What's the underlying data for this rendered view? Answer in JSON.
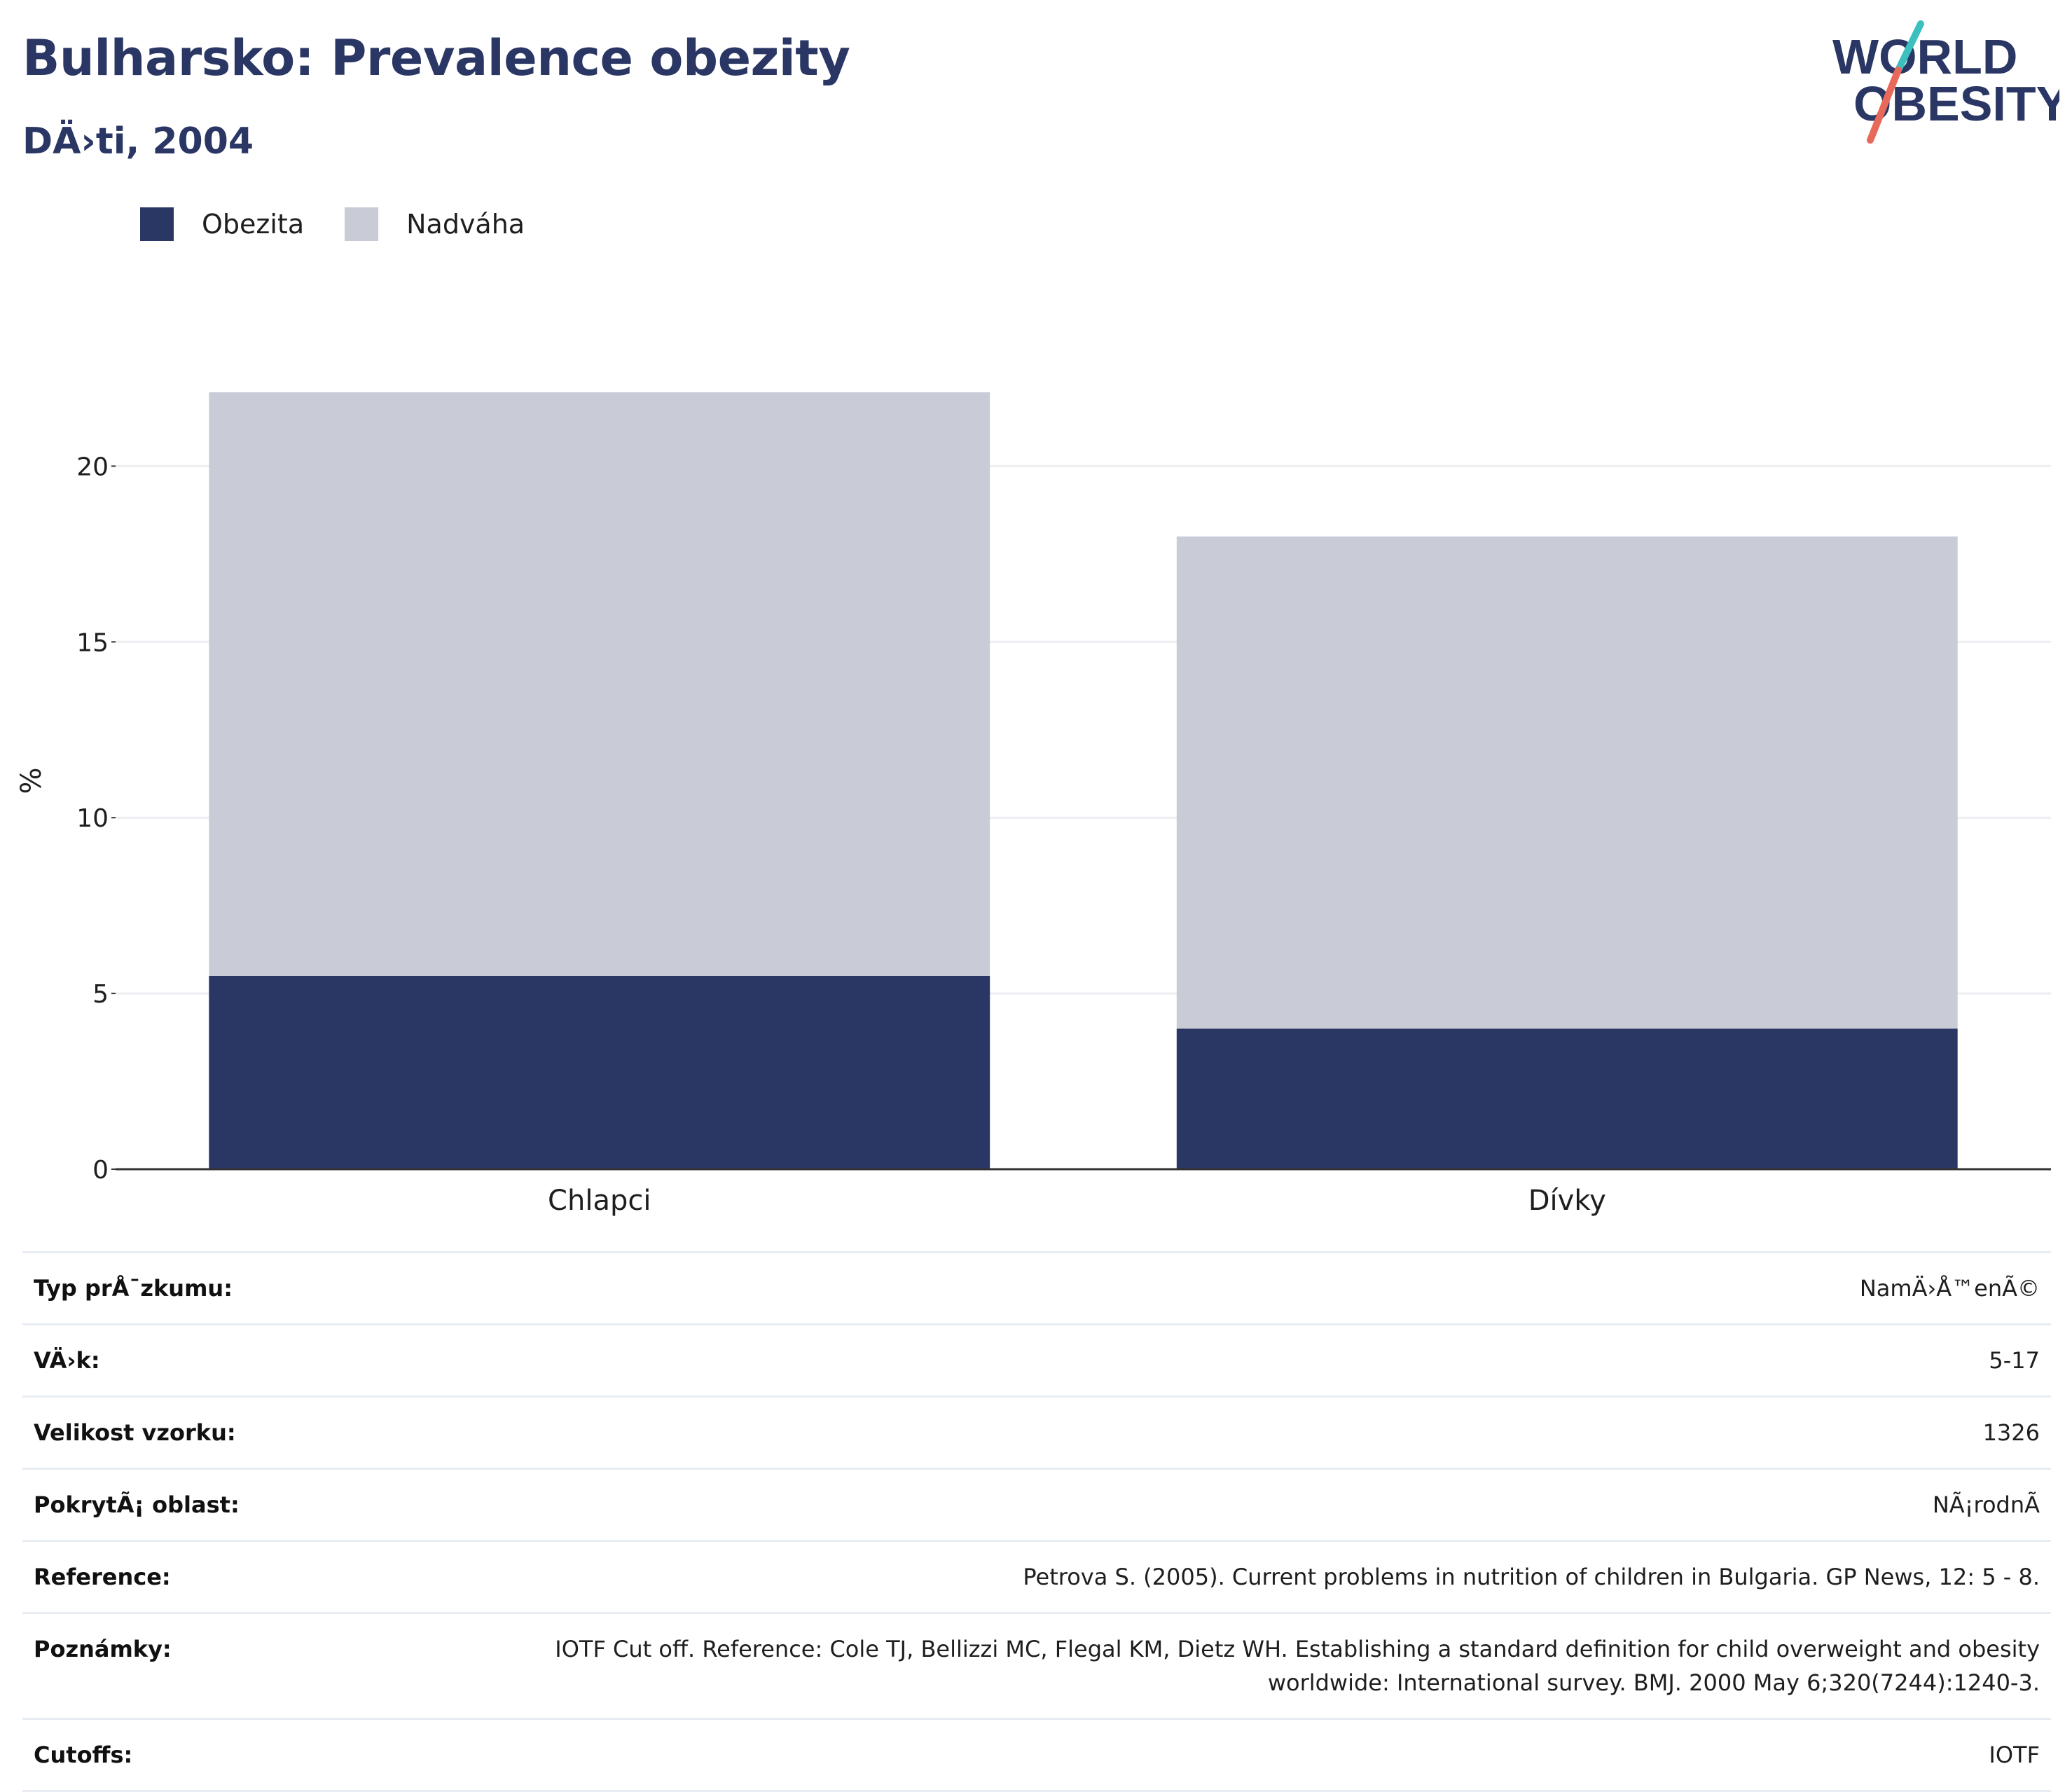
{
  "header": {
    "title": "Bulharsko: Prevalence obezity",
    "subtitle": "DÄ›ti, 2004"
  },
  "logo": {
    "line1": "WORLD",
    "line2": "OBESITY"
  },
  "colors": {
    "obezita": "#2a3664",
    "nadvaha": "#c9cbd7",
    "title": "#2a3664",
    "grid": "#eceef2",
    "axis": "#333333",
    "logo_teal": "#3bbfbf",
    "logo_coral": "#e8695a"
  },
  "legend": [
    {
      "label": "Obezita",
      "color": "#2a3664"
    },
    {
      "label": "Nadváha",
      "color": "#c9cbd7"
    }
  ],
  "chart_data": {
    "type": "bar",
    "stacked": true,
    "categories": [
      "Chlapci",
      "Dívky"
    ],
    "series": [
      {
        "name": "Obezita",
        "values": [
          5.5,
          4.0
        ],
        "color": "#2a3664"
      },
      {
        "name": "Nadváha",
        "values": [
          16.6,
          14.0
        ],
        "color": "#c9cbd7"
      }
    ],
    "ylabel": "%",
    "ylim": [
      0,
      22.1
    ],
    "yticks": [
      0,
      5,
      10,
      15,
      20
    ],
    "grid": true,
    "legend_position": "top-left"
  },
  "info": [
    {
      "key": "Typ prÅ¯zkumu:",
      "value": "NamÄ›Å™enÃ©"
    },
    {
      "key": "VÄ›k:",
      "value": "5-17"
    },
    {
      "key": "Velikost vzorku:",
      "value": "1326"
    },
    {
      "key": "PokrytÃ¡ oblast:",
      "value": "NÃ¡rodnÃ"
    },
    {
      "key": "Reference:",
      "value": "Petrova S. (2005). Current problems in nutrition of children in Bulgaria. GP News, 12: 5 - 8."
    },
    {
      "key": "Poznámky:",
      "value_lines": [
        "IOTF Cut off. Reference: Cole TJ, Bellizzi MC, Flegal KM, Dietz WH. Establishing a standard definition for child overweight and obesity",
        "worldwide: International survey. BMJ. 2000 May 6;320(7244):1240-3."
      ]
    },
    {
      "key": "Cutoffs:",
      "value": "IOTF"
    }
  ]
}
